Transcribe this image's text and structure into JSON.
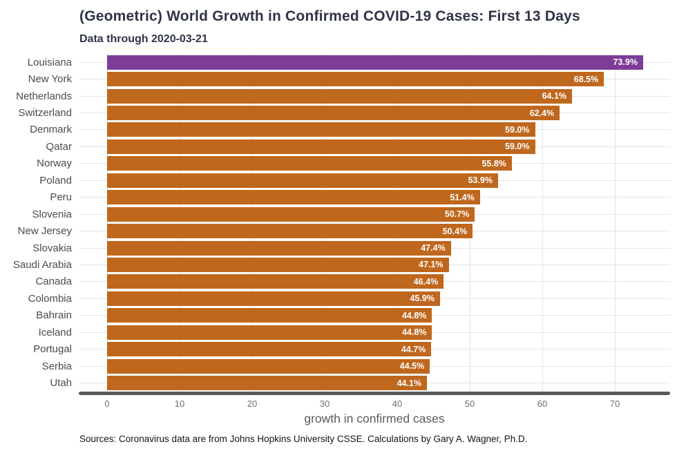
{
  "chart_data": {
    "type": "bar",
    "orientation": "horizontal",
    "title": "(Geometric) World Growth in Confirmed COVID-19 Cases: First 13 Days",
    "subtitle": "Data through 2020-03-21",
    "caption": "Sources: Coronavirus data are from Johns Hopkins University CSSE. Calculations by Gary A. Wagner, Ph.D.",
    "xlabel": "growth in confirmed cases",
    "categories": [
      "Louisiana",
      "New York",
      "Netherlands",
      "Switzerland",
      "Denmark",
      "Qatar",
      "Norway",
      "Poland",
      "Peru",
      "Slovenia",
      "New Jersey",
      "Slovakia",
      "Saudi Arabia",
      "Canada",
      "Colombia",
      "Bahrain",
      "Iceland",
      "Portugal",
      "Serbia",
      "Utah"
    ],
    "values": [
      73.9,
      68.5,
      64.1,
      62.4,
      59.0,
      59.0,
      55.8,
      53.9,
      51.4,
      50.7,
      50.4,
      47.4,
      47.1,
      46.4,
      45.9,
      44.8,
      44.8,
      44.7,
      44.5,
      44.1
    ],
    "value_labels": [
      "73.9%",
      "68.5%",
      "64.1%",
      "62.4%",
      "59.0%",
      "59.0%",
      "55.8%",
      "53.9%",
      "51.4%",
      "50.7%",
      "50.4%",
      "47.4%",
      "47.1%",
      "46.4%",
      "45.9%",
      "44.8%",
      "44.8%",
      "44.7%",
      "44.5%",
      "44.1%"
    ],
    "xticks": [
      0,
      10,
      20,
      30,
      40,
      50,
      60,
      70
    ],
    "xlim": [
      0,
      74
    ],
    "grid": "major",
    "legend": "none",
    "highlight_category": "Louisiana",
    "colors": {
      "bar": "#BF671D",
      "highlight_bar": "#7D3C98",
      "value_label_text": "#FFFFFF",
      "gridline": "#E4E4E4",
      "axis_line": "#58595B",
      "title_text": "#2E3447",
      "y_label_text": "#4A4A4A",
      "tick_label_text": "#6E6E6E",
      "axis_title_text": "#5A5A5A",
      "caption_text": "#141414"
    }
  }
}
